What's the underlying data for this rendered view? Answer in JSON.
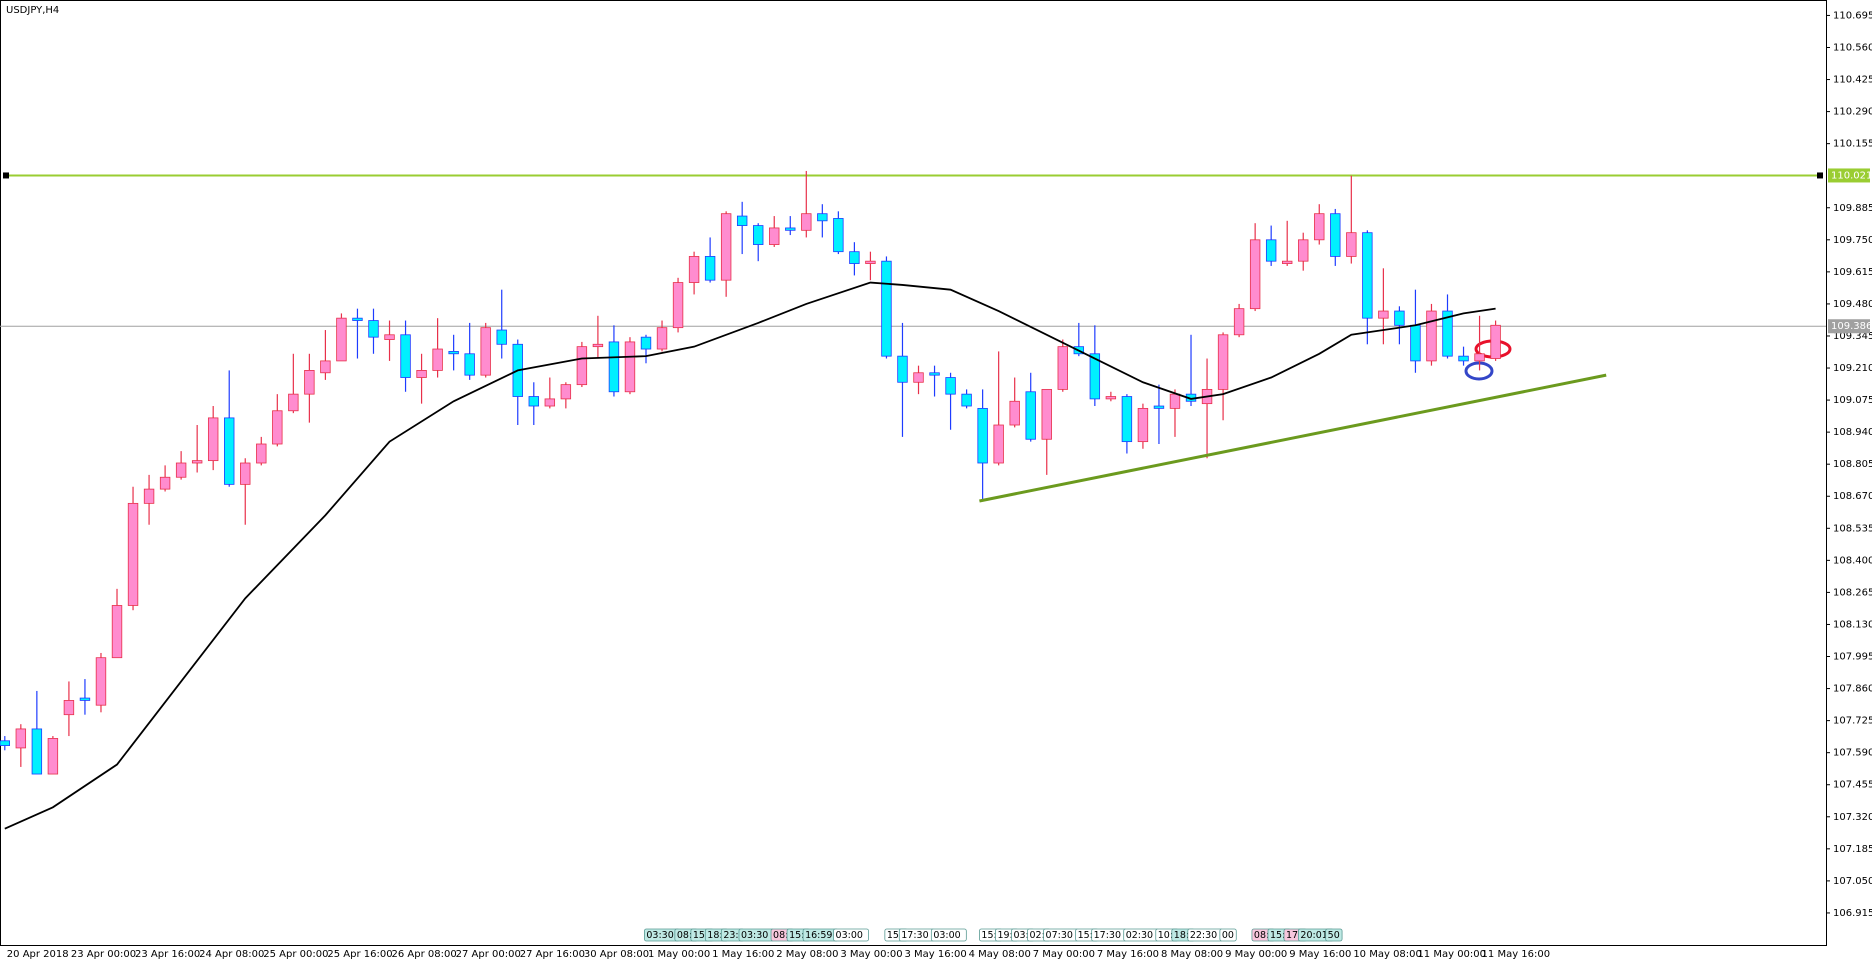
{
  "chart_data": {
    "type": "candlestick",
    "title": "USDJPY,H4",
    "categories": [
      "20 Apr 2018",
      null,
      null,
      null,
      "23 Apr 00:00",
      null,
      null,
      null,
      "23 Apr 16:00",
      null,
      null,
      null,
      "24 Apr 08:00",
      null,
      null,
      null,
      "25 Apr 00:00",
      null,
      null,
      null,
      "25 Apr 16:00",
      null,
      null,
      null,
      "26 Apr 08:00",
      null,
      null,
      null,
      "27 Apr 00:00",
      null,
      null,
      null,
      "27 Apr 16:00",
      null,
      null,
      null,
      "30 Apr 08:00",
      null,
      null,
      null,
      "1 May 00:00",
      null,
      null,
      null,
      "1 May 16:00",
      null,
      null,
      null,
      "2 May 08:00",
      null,
      null,
      null,
      "3 May 00:00",
      null,
      null,
      null,
      "3 May 16:00",
      null,
      null,
      null,
      "4 May 08:00",
      null,
      null,
      null,
      "7 May 00:00",
      null,
      null,
      null,
      "7 May 16:00",
      null,
      null,
      null,
      "8 May 08:00",
      null,
      null,
      null,
      "9 May 00:00",
      null,
      null,
      null,
      "9 May 16:00",
      null,
      null,
      null,
      "10 May 08:00",
      null,
      null,
      null,
      "11 May 00:00",
      null,
      null,
      null,
      "11 May 16:00",
      null
    ],
    "open": [
      107.64,
      107.61,
      107.69,
      107.5,
      107.75,
      107.82,
      107.79,
      107.99,
      108.21,
      108.64,
      108.7,
      108.75,
      108.81,
      108.82,
      109.0,
      108.72,
      108.81,
      108.89,
      109.03,
      109.1,
      109.19,
      109.24,
      109.42,
      109.41,
      109.33,
      109.35,
      109.17,
      109.2,
      109.28,
      109.27,
      109.18,
      109.37,
      109.31,
      109.09,
      109.05,
      109.08,
      109.14,
      109.3,
      109.32,
      109.11,
      109.34,
      109.29,
      109.38,
      109.57,
      109.68,
      109.58,
      109.85,
      109.81,
      109.73,
      109.8,
      109.79,
      109.86,
      109.84,
      109.7,
      109.65,
      109.66,
      109.26,
      109.15,
      109.19,
      109.17,
      109.1,
      109.04,
      108.81,
      108.97,
      109.11,
      108.91,
      109.12,
      109.3,
      109.27,
      109.08,
      109.09,
      108.9,
      109.05,
      109.04,
      109.1,
      109.06,
      109.12,
      109.35,
      109.46,
      109.75,
      109.65,
      109.66,
      109.75,
      109.86,
      109.68,
      109.78,
      109.42,
      109.45,
      109.39,
      109.24,
      109.45,
      109.26,
      109.24,
      109.25
    ],
    "high": [
      107.66,
      107.71,
      107.85,
      107.66,
      107.89,
      107.9,
      108.01,
      108.28,
      108.71,
      108.76,
      108.8,
      108.86,
      108.97,
      109.05,
      109.2,
      108.83,
      108.92,
      109.1,
      109.27,
      109.27,
      109.37,
      109.44,
      109.46,
      109.46,
      109.41,
      109.41,
      109.27,
      109.42,
      109.35,
      109.4,
      109.4,
      109.54,
      109.33,
      109.15,
      109.17,
      109.15,
      109.32,
      109.43,
      109.39,
      109.34,
      109.35,
      109.41,
      109.59,
      109.7,
      109.76,
      109.87,
      109.91,
      109.82,
      109.85,
      109.85,
      110.04,
      109.9,
      109.87,
      109.74,
      109.7,
      109.68,
      109.4,
      109.22,
      109.22,
      109.19,
      109.12,
      109.12,
      109.28,
      109.17,
      109.19,
      109.12,
      109.33,
      109.4,
      109.39,
      109.11,
      109.1,
      109.06,
      109.14,
      109.12,
      109.35,
      109.25,
      109.36,
      109.48,
      109.82,
      109.81,
      109.83,
      109.78,
      109.9,
      109.88,
      110.02,
      109.79,
      109.63,
      109.47,
      109.54,
      109.48,
      109.52,
      109.3,
      109.43,
      109.41
    ],
    "low": [
      107.6,
      107.53,
      107.5,
      107.5,
      107.66,
      107.75,
      107.76,
      107.99,
      108.19,
      108.55,
      108.69,
      108.74,
      108.77,
      108.78,
      108.71,
      108.55,
      108.8,
      108.88,
      109.02,
      108.98,
      109.16,
      109.24,
      109.25,
      109.27,
      109.24,
      109.11,
      109.06,
      109.17,
      109.2,
      109.16,
      109.17,
      109.25,
      108.97,
      108.97,
      109.04,
      109.04,
      109.13,
      109.25,
      109.09,
      109.1,
      109.23,
      109.28,
      109.36,
      109.52,
      109.57,
      109.51,
      109.69,
      109.66,
      109.72,
      109.77,
      109.76,
      109.76,
      109.69,
      109.6,
      109.58,
      109.25,
      108.92,
      109.1,
      109.09,
      108.95,
      109.04,
      108.65,
      108.8,
      108.96,
      108.9,
      108.76,
      109.11,
      109.26,
      109.05,
      109.07,
      108.85,
      108.87,
      108.89,
      108.92,
      109.05,
      108.83,
      108.99,
      109.34,
      109.45,
      109.64,
      109.64,
      109.62,
      109.73,
      109.64,
      109.65,
      109.31,
      109.31,
      109.31,
      109.19,
      109.22,
      109.25,
      109.22,
      109.2,
      109.24
    ],
    "close": [
      107.62,
      107.69,
      107.5,
      107.65,
      107.81,
      107.81,
      107.99,
      108.21,
      108.64,
      108.7,
      108.75,
      108.81,
      108.82,
      109.0,
      108.72,
      108.81,
      108.89,
      109.03,
      109.1,
      109.2,
      109.24,
      109.42,
      109.41,
      109.34,
      109.35,
      109.17,
      109.2,
      109.29,
      109.27,
      109.18,
      109.38,
      109.31,
      109.09,
      109.05,
      109.08,
      109.14,
      109.3,
      109.31,
      109.11,
      109.32,
      109.29,
      109.38,
      109.57,
      109.68,
      109.58,
      109.86,
      109.81,
      109.73,
      109.8,
      109.79,
      109.86,
      109.83,
      109.7,
      109.65,
      109.66,
      109.26,
      109.15,
      109.19,
      109.18,
      109.1,
      109.05,
      108.81,
      108.97,
      109.07,
      108.91,
      109.12,
      109.3,
      109.27,
      109.08,
      109.09,
      108.9,
      109.04,
      109.04,
      109.1,
      109.07,
      109.12,
      109.35,
      109.46,
      109.75,
      109.66,
      109.66,
      109.75,
      109.86,
      109.68,
      109.78,
      109.42,
      109.45,
      109.39,
      109.24,
      109.45,
      109.26,
      109.24,
      109.27,
      109.39
    ],
    "up_color": "#ff8ccf",
    "up_wick_color": "#e8304a",
    "down_color": "#00f0ff",
    "down_wick_color": "#1e3cff",
    "ylim": [
      106.78,
      110.76
    ],
    "yticks": [
      106.915,
      {
        "value": 107.05,
        "label": "107.050"
      },
      107.185,
      {
        "value": 107.32,
        "label": "107.320"
      },
      107.455,
      {
        "value": 107.59,
        "label": "107.590"
      },
      107.725,
      {
        "value": 107.86,
        "label": "107.860"
      },
      107.995,
      {
        "value": 108.13,
        "label": "108.130"
      },
      108.265,
      {
        "value": 108.4,
        "label": "108.400"
      },
      108.535,
      {
        "value": 108.67,
        "label": "108.670"
      },
      108.805,
      {
        "value": 108.94,
        "label": "108.940"
      },
      109.075,
      {
        "value": 109.21,
        "label": "109.210"
      },
      109.345,
      {
        "value": 109.48,
        "label": "109.480"
      },
      109.615,
      {
        "value": 109.75,
        "label": "109.750"
      },
      109.885,
      110.155,
      {
        "value": 110.29,
        "label": "110.290"
      },
      110.425,
      {
        "value": 110.56,
        "label": "110.560"
      },
      110.695
    ],
    "ma": {
      "color": "#000000",
      "x": [
        0,
        3,
        7,
        11,
        15,
        20,
        24,
        28,
        32,
        36,
        40,
        43,
        47,
        50,
        54,
        56,
        59,
        62,
        65,
        68,
        71,
        74,
        76,
        79,
        82,
        84,
        88,
        91,
        93
      ],
      "values": [
        107.27,
        107.36,
        107.54,
        107.89,
        108.24,
        108.59,
        108.9,
        109.07,
        109.2,
        109.25,
        109.26,
        109.3,
        109.4,
        109.48,
        109.57,
        109.56,
        109.54,
        109.45,
        109.35,
        109.25,
        109.15,
        109.08,
        109.1,
        109.17,
        109.27,
        109.35,
        109.39,
        109.44,
        109.46
      ]
    },
    "trendline": {
      "color": "#6b9a1e",
      "x": [
        60.8,
        99.9
      ],
      "values": [
        108.65,
        109.18
      ]
    },
    "level": {
      "value": 110.021,
      "color": "#9acd32"
    },
    "last_price": {
      "value": 109.386,
      "color": "#a0a0a0"
    },
    "events": [
      {
        "label": "03:30",
        "x": 39.9,
        "color": "#bfe9e4"
      },
      {
        "label": "08:",
        "x": 41.8,
        "color": "#bfe9e4"
      },
      {
        "label": "15:",
        "x": 42.8,
        "color": "#bfe9e4"
      },
      {
        "label": "18:",
        "x": 43.7,
        "color": "#bfe9e4"
      },
      {
        "label": "23:",
        "x": 44.7,
        "color": "#bfe9e4"
      },
      {
        "label": "03:30",
        "x": 45.8,
        "color": "#bfe9e4"
      },
      {
        "label": "08:",
        "x": 47.8,
        "color": "#f7c6dc"
      },
      {
        "label": "15:",
        "x": 48.8,
        "color": "#bfe9e4"
      },
      {
        "label": "16:59",
        "x": 49.8,
        "color": "#bfe9e4"
      },
      {
        "label": "03:00",
        "x": 51.7,
        "color": "#ffffff"
      },
      {
        "label": "15:",
        "x": 54.9,
        "color": "#ffffff"
      },
      {
        "label": "17:30",
        "x": 55.8,
        "color": "#ffffff"
      },
      {
        "label": "03:00",
        "x": 57.8,
        "color": "#ffffff"
      },
      {
        "label": "15:",
        "x": 60.8,
        "color": "#ffffff"
      },
      {
        "label": "19:",
        "x": 61.8,
        "color": "#ffffff"
      },
      {
        "label": "03:",
        "x": 62.8,
        "color": "#ffffff"
      },
      {
        "label": "02:",
        "x": 63.8,
        "color": "#ffffff"
      },
      {
        "label": "07:30",
        "x": 64.8,
        "color": "#ffffff"
      },
      {
        "label": "15:",
        "x": 66.8,
        "color": "#ffffff"
      },
      {
        "label": "17:30",
        "x": 67.8,
        "color": "#ffffff"
      },
      {
        "label": "02:30",
        "x": 69.8,
        "color": "#ffffff"
      },
      {
        "label": "10:",
        "x": 71.8,
        "color": "#ffffff"
      },
      {
        "label": "18:",
        "x": 72.8,
        "color": "#bfe9e4"
      },
      {
        "label": "22:30",
        "x": 73.8,
        "color": "#ffffff"
      },
      {
        "label": "00",
        "x": 75.8,
        "color": "#ffffff"
      },
      {
        "label": "08:",
        "x": 77.8,
        "color": "#f7c6dc"
      },
      {
        "label": "15:",
        "x": 78.8,
        "color": "#bfe9e4"
      },
      {
        "label": "17:",
        "x": 79.8,
        "color": "#f7c6dc"
      },
      {
        "label": "20:01",
        "x": 80.7,
        "color": "#bfe9e4"
      },
      {
        "label": "50",
        "x": 82.4,
        "color": "#bfe9e4"
      }
    ]
  }
}
